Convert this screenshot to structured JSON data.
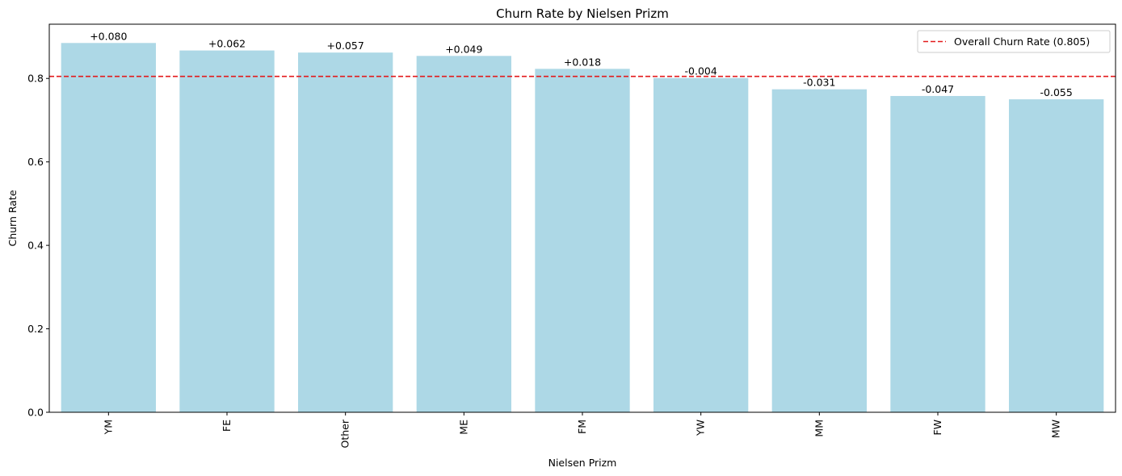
{
  "chart_data": {
    "type": "bar",
    "title": "Churn Rate by Nielsen Prizm",
    "xlabel": "Nielsen Prizm",
    "ylabel": "Churn Rate",
    "categories": [
      "YM",
      "FE",
      "Other",
      "ME",
      "FM",
      "YW",
      "MM",
      "FW",
      "MW"
    ],
    "values": [
      0.885,
      0.867,
      0.862,
      0.854,
      0.823,
      0.801,
      0.774,
      0.758,
      0.75
    ],
    "bar_labels": [
      "+0.080",
      "+0.062",
      "+0.057",
      "+0.049",
      "+0.018",
      "-0.004",
      "-0.031",
      "-0.047",
      "-0.055"
    ],
    "ylim": [
      0,
      0.93
    ],
    "yticks": [
      0.0,
      0.2,
      0.4,
      0.6,
      0.8
    ],
    "ytick_labels": [
      "0.0",
      "0.2",
      "0.4",
      "0.6",
      "0.8"
    ],
    "reference_line": {
      "value": 0.805,
      "label": "Overall Churn Rate (0.805)",
      "color": "#e31a1c",
      "style": "dashed"
    },
    "bar_color": "#add8e6",
    "legend_position": "top-right",
    "grid": false
  }
}
